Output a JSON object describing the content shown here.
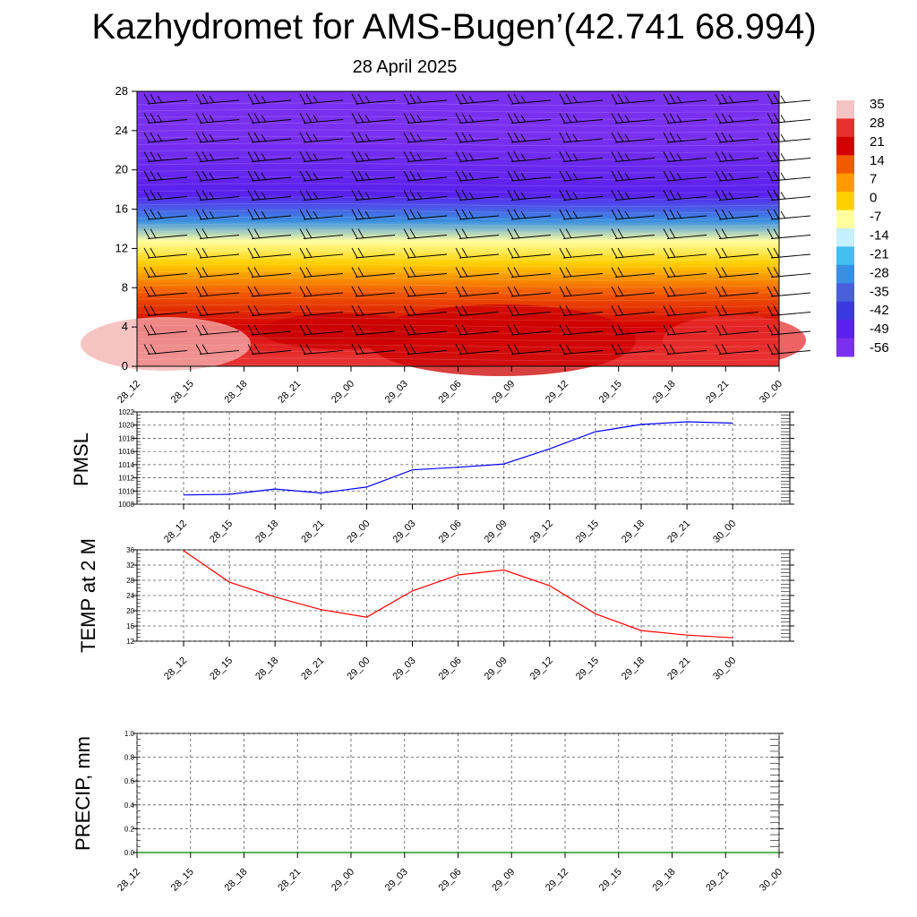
{
  "title": "Kazhydromet for AMS-Bugen’(42.741 68.994)",
  "subtitle": "28 April 2025",
  "chart_data": [
    {
      "type": "heatmap",
      "name": "vertical temperature cross-section",
      "x_ticks": [
        "28_12",
        "28_15",
        "28_18",
        "28_21",
        "29_00",
        "29_03",
        "29_06",
        "29_09",
        "29_12",
        "29_15",
        "29_18",
        "29_21",
        "30_00"
      ],
      "y_ticks": [
        0,
        4,
        8,
        12,
        16,
        20,
        24,
        28
      ],
      "ylim": [
        0,
        28
      ],
      "colorbar": {
        "labels": [
          "35",
          "28",
          "21",
          "14",
          "7",
          "0",
          "-7",
          "-14",
          "-21",
          "-28",
          "-35",
          "-42",
          "-49",
          "-56"
        ],
        "colors": [
          "#f4c4c4",
          "#e83030",
          "#d40000",
          "#f25a00",
          "#ff9a00",
          "#ffd000",
          "#ffffa0",
          "#c6f0ff",
          "#40c0f0",
          "#3a90e0",
          "#4a60d8",
          "#3a38e0",
          "#5a20ee",
          "#7a30f0"
        ]
      },
      "temperature_bands": [
        {
          "z_from": 0,
          "z_to": 2,
          "value": 28
        },
        {
          "z_from": 2,
          "z_to": 6,
          "value": 21
        },
        {
          "z_from": 6,
          "z_to": 9,
          "value": 14
        },
        {
          "z_from": 9,
          "z_to": 12,
          "value": 0
        },
        {
          "z_from": 12,
          "z_to": 13.5,
          "value": -7
        },
        {
          "z_from": 13.5,
          "z_to": 16,
          "value": -28
        },
        {
          "z_from": 16,
          "z_to": 19,
          "value": -49
        },
        {
          "z_from": 19,
          "z_to": 28,
          "value": -56
        }
      ],
      "wind_barbs": true
    },
    {
      "type": "line",
      "ylabel": "PMSL",
      "x": [
        "28_12",
        "28_15",
        "28_18",
        "28_21",
        "29_00",
        "29_03",
        "29_06",
        "29_09",
        "29_12",
        "29_15",
        "29_18",
        "29_21",
        "30_00"
      ],
      "series": [
        {
          "values": [
            1009.4,
            1009.5,
            1010.3,
            1009.7,
            1010.6,
            1013.2,
            1013.6,
            1014.1,
            1016.4,
            1019.0,
            1020.1,
            1020.5,
            1020.3
          ],
          "color": "#0000ff"
        }
      ],
      "ylim": [
        1008,
        1022
      ],
      "y_ticks": [
        1008,
        1010,
        1012,
        1014,
        1016,
        1018,
        1020,
        1022
      ],
      "grid": true
    },
    {
      "type": "line",
      "ylabel": "TEMP at 2 M",
      "x": [
        "28_12",
        "28_15",
        "28_18",
        "28_21",
        "29_00",
        "29_03",
        "29_06",
        "29_09",
        "29_12",
        "29_15",
        "29_18",
        "29_21",
        "30_00"
      ],
      "series": [
        {
          "values": [
            35.8,
            27.5,
            23.6,
            20.3,
            18.3,
            25.2,
            29.4,
            30.7,
            26.6,
            19.2,
            14.8,
            13.6,
            12.9
          ],
          "color": "#ff0000"
        }
      ],
      "ylim": [
        12,
        36
      ],
      "y_ticks": [
        12,
        16,
        20,
        24,
        28,
        32,
        36
      ],
      "grid": true
    },
    {
      "type": "line",
      "ylabel": "PRECIP, mm",
      "x": [
        "28_12",
        "28_15",
        "28_18",
        "28_21",
        "29_00",
        "29_03",
        "29_06",
        "29_09",
        "29_12",
        "29_15",
        "29_18",
        "29_21",
        "30_00"
      ],
      "series": [
        {
          "values": [
            0,
            0,
            0,
            0,
            0,
            0,
            0,
            0,
            0,
            0,
            0,
            0,
            0
          ],
          "color": "#008000"
        }
      ],
      "ylim": [
        0,
        1.0
      ],
      "y_ticks": [
        "0.0",
        "0.2",
        "0.4",
        "0.6",
        "0.8",
        "1.0"
      ],
      "grid": true
    }
  ]
}
